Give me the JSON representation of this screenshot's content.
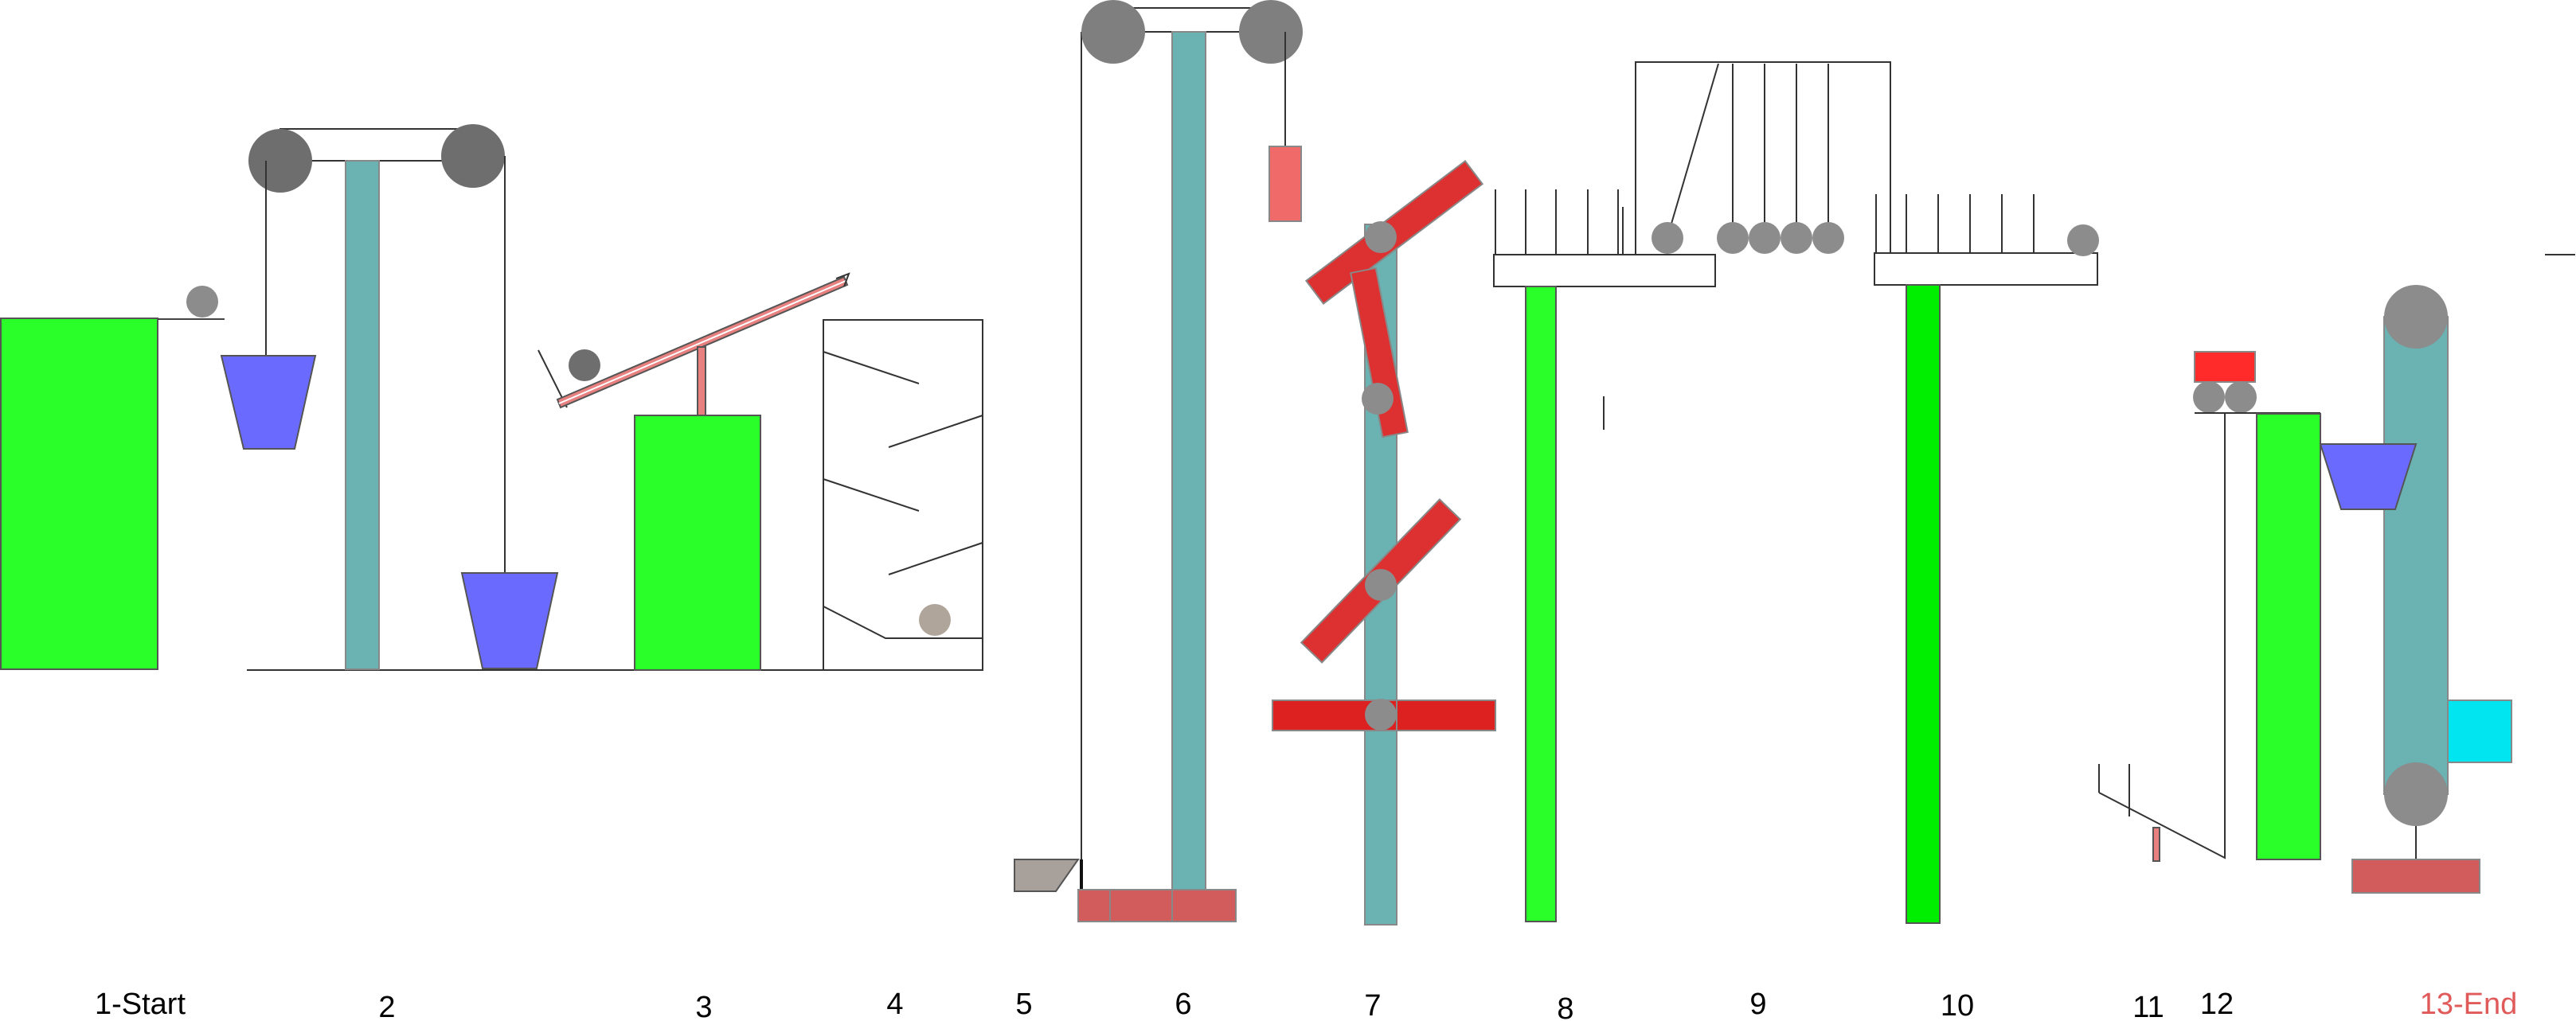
{
  "diagram": {
    "stages": [
      {
        "id": "stage-1",
        "label": "1-Start",
        "color": "#000000"
      },
      {
        "id": "stage-2",
        "label": "2",
        "color": "#000000"
      },
      {
        "id": "stage-3",
        "label": "3",
        "color": "#000000"
      },
      {
        "id": "stage-4",
        "label": "4",
        "color": "#000000"
      },
      {
        "id": "stage-5",
        "label": "5",
        "color": "#000000"
      },
      {
        "id": "stage-6",
        "label": "6",
        "color": "#000000"
      },
      {
        "id": "stage-7",
        "label": "7",
        "color": "#000000"
      },
      {
        "id": "stage-8",
        "label": "8",
        "color": "#000000"
      },
      {
        "id": "stage-9",
        "label": "9",
        "color": "#000000"
      },
      {
        "id": "stage-10",
        "label": "10",
        "color": "#000000"
      },
      {
        "id": "stage-11",
        "label": "11",
        "color": "#000000"
      },
      {
        "id": "stage-12",
        "label": "12",
        "color": "#000000"
      },
      {
        "id": "stage-13",
        "label": "13-End",
        "color": "#e05a5a"
      }
    ],
    "colors": {
      "green_block": "#2aff2a",
      "teal_column": "#6bb2b2",
      "red_plank": "#dd3030",
      "salmon_block": "#d25c5c",
      "pulley": "#7f7f7f",
      "ball": "#8c8c8c",
      "bucket": "#6a6aff",
      "cyan_box": "#00e5f0"
    }
  }
}
